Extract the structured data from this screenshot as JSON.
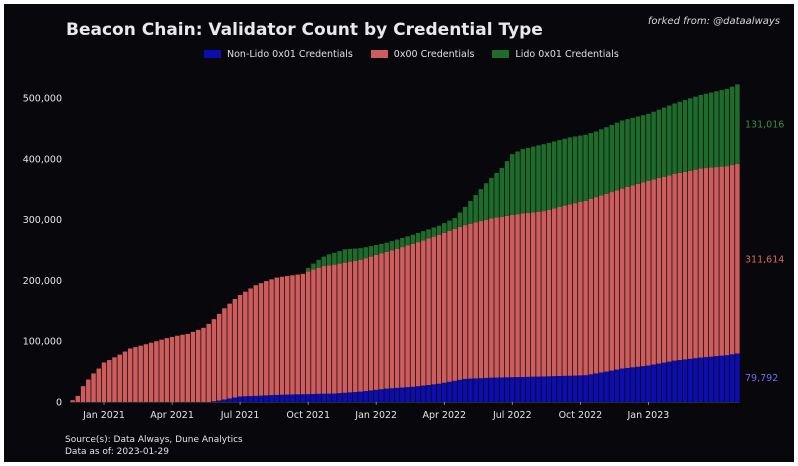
{
  "title": "Beacon Chain: Validator Count by Credential Type",
  "attribution": "forked from: @dataalways",
  "source": "Source(s): Data Always, Dune Analytics",
  "data_as_of": "Data as of: 2023-01-29",
  "colors": {
    "background": "#07070c",
    "non_lido": "#0d0dad",
    "bls_0x00": "#cd5c5c",
    "lido": "#1f6b2c",
    "non_lido_label": "#6e6ef0",
    "bls_label": "#d9685c",
    "lido_label": "#3c8f44",
    "axis_text": "#e6e6ea"
  },
  "chart_data": {
    "type": "bar",
    "stacked": true,
    "title": "Beacon Chain: Validator Count by Credential Type",
    "xlabel": "",
    "ylabel": "",
    "ylim": [
      0,
      520000
    ],
    "grid": false,
    "legend_position": "top-center",
    "bar_interval": "weekly",
    "x_ticks": [
      "Jan 2021",
      "Apr 2021",
      "Jul 2021",
      "Oct 2021",
      "Jan 2022",
      "Apr 2022",
      "Jul 2022",
      "Oct 2022",
      "Jan 2023"
    ],
    "y_ticks": [
      0,
      100000,
      200000,
      300000,
      400000,
      500000
    ],
    "y_tick_labels": [
      "0",
      "100,000",
      "200,000",
      "300,000",
      "400,000",
      "500,000"
    ],
    "series": [
      {
        "name": "Non-Lido 0x01 Credentials",
        "key": "non_lido",
        "end_label": "79,792",
        "anchors": [
          [
            0,
            0
          ],
          [
            26,
            0
          ],
          [
            28,
            2500
          ],
          [
            32,
            9000
          ],
          [
            40,
            12000
          ],
          [
            50,
            14000
          ],
          [
            55,
            17000
          ],
          [
            60,
            22000
          ],
          [
            65,
            25000
          ],
          [
            70,
            30000
          ],
          [
            75,
            38000
          ],
          [
            80,
            40000
          ],
          [
            90,
            42000
          ],
          [
            98,
            44000
          ],
          [
            102,
            50000
          ],
          [
            105,
            55000
          ],
          [
            110,
            60000
          ],
          [
            115,
            68000
          ],
          [
            120,
            73000
          ],
          [
            125,
            77000
          ],
          [
            127,
            79792
          ]
        ]
      },
      {
        "name": "0x00 Credentials",
        "key": "bls_0x00",
        "end_label": "311,614",
        "anchors": [
          [
            0,
            3000
          ],
          [
            1,
            10000
          ],
          [
            2,
            26000
          ],
          [
            3,
            37000
          ],
          [
            4,
            47000
          ],
          [
            5,
            55000
          ],
          [
            6,
            65000
          ],
          [
            7,
            69000
          ],
          [
            9,
            78000
          ],
          [
            11,
            88000
          ],
          [
            14,
            95000
          ],
          [
            18,
            105000
          ],
          [
            20,
            109000
          ],
          [
            22,
            112000
          ],
          [
            25,
            122000
          ],
          [
            27,
            135000
          ],
          [
            29,
            150000
          ],
          [
            31,
            162000
          ],
          [
            33,
            172000
          ],
          [
            35,
            182000
          ],
          [
            37,
            188000
          ],
          [
            39,
            193000
          ],
          [
            44,
            198000
          ],
          [
            46,
            205000
          ],
          [
            48,
            210000
          ],
          [
            55,
            217000
          ],
          [
            60,
            225000
          ],
          [
            65,
            235000
          ],
          [
            70,
            245000
          ],
          [
            75,
            253000
          ],
          [
            80,
            262000
          ],
          [
            85,
            268000
          ],
          [
            90,
            272000
          ],
          [
            95,
            282000
          ],
          [
            100,
            290000
          ],
          [
            105,
            296000
          ],
          [
            110,
            304000
          ],
          [
            115,
            307000
          ],
          [
            120,
            311000
          ],
          [
            125,
            311000
          ],
          [
            127,
            311614
          ]
        ]
      },
      {
        "name": "Lido 0x01 Credentials",
        "key": "lido",
        "end_label": "131,016",
        "anchors": [
          [
            0,
            0
          ],
          [
            44,
            0
          ],
          [
            45,
            6000
          ],
          [
            47,
            13000
          ],
          [
            49,
            18000
          ],
          [
            52,
            22000
          ],
          [
            56,
            18000
          ],
          [
            60,
            15000
          ],
          [
            65,
            15000
          ],
          [
            70,
            15000
          ],
          [
            73,
            18000
          ],
          [
            75,
            30000
          ],
          [
            77,
            45000
          ],
          [
            79,
            60000
          ],
          [
            82,
            80000
          ],
          [
            84,
            100000
          ],
          [
            86,
            106000
          ],
          [
            90,
            110000
          ],
          [
            95,
            110000
          ],
          [
            100,
            108000
          ],
          [
            105,
            112000
          ],
          [
            110,
            110000
          ],
          [
            115,
            116000
          ],
          [
            120,
            121000
          ],
          [
            125,
            127000
          ],
          [
            127,
            131016
          ]
        ]
      }
    ]
  }
}
